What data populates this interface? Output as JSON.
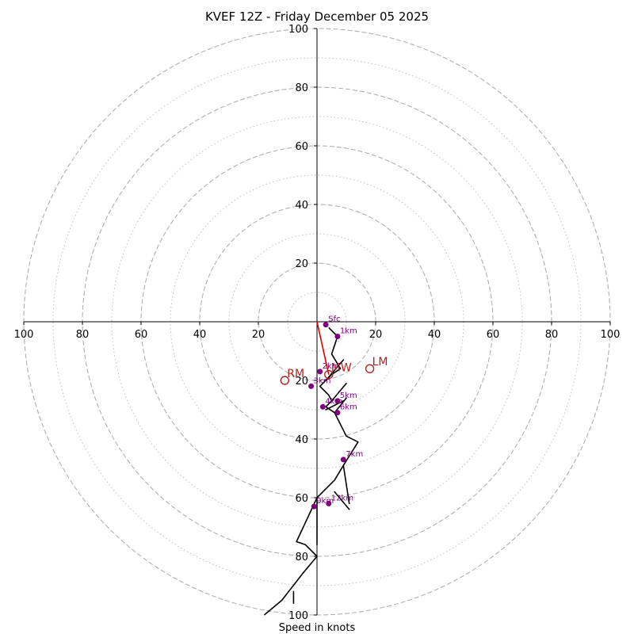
{
  "chart_data": {
    "type": "hodograph",
    "title": "KVEF 12Z - Friday December 05 2025",
    "xlabel": "Speed in knots",
    "units": "knots",
    "axis_range": [
      -100,
      100
    ],
    "ring_major": [
      20,
      40,
      60,
      80,
      100
    ],
    "ring_minor": [
      10,
      30,
      50,
      70,
      90
    ],
    "tick_labels_x": [
      "100",
      "80",
      "60",
      "40",
      "20",
      "20",
      "40",
      "60",
      "80",
      "100"
    ],
    "tick_values_x": [
      -100,
      -80,
      -60,
      -40,
      -20,
      20,
      40,
      60,
      80,
      100
    ],
    "tick_labels_y": [
      "100",
      "80",
      "60",
      "40",
      "20",
      "20",
      "40",
      "60",
      "80",
      "100"
    ],
    "tick_values_y": [
      100,
      80,
      60,
      40,
      20,
      -20,
      -40,
      -60,
      -80,
      -100
    ],
    "colors": {
      "trace": "#000000",
      "points": "#800080",
      "motion": "#b22222",
      "shear_vector": "#dd0000",
      "grid": "#b0b0b0",
      "axes": "#000000"
    },
    "trace": [
      [
        4,
        -2
      ],
      [
        7,
        -5
      ],
      [
        5,
        -11
      ],
      [
        8,
        -16
      ],
      [
        5,
        -18
      ],
      [
        3,
        -20
      ],
      [
        1,
        -22
      ],
      [
        4,
        -25
      ],
      [
        5,
        -27
      ],
      [
        3,
        -29
      ],
      [
        6,
        -31
      ],
      [
        7,
        -33
      ],
      [
        10,
        -39
      ],
      [
        14,
        -41
      ],
      [
        9,
        -49
      ],
      [
        6,
        -54
      ],
      [
        4,
        -56
      ],
      [
        0,
        -60
      ],
      [
        -7,
        -75
      ],
      [
        -4,
        -76
      ],
      [
        0,
        -80
      ],
      [
        -5,
        -86
      ],
      [
        -12,
        -95
      ],
      [
        -18,
        -100
      ]
    ],
    "barbs": [
      [
        [
          3,
          -20
        ],
        [
          9,
          -13
        ]
      ],
      [
        [
          5,
          -27
        ],
        [
          10,
          -21
        ]
      ],
      [
        [
          3,
          -30
        ],
        [
          9,
          -27
        ]
      ],
      [
        [
          6,
          -31
        ],
        [
          10,
          -26
        ]
      ],
      [
        [
          9,
          -49
        ],
        [
          11,
          -62
        ]
      ],
      [
        [
          6,
          -58
        ],
        [
          11,
          -64
        ]
      ],
      [
        [
          0,
          -60
        ],
        [
          0,
          -76
        ]
      ],
      [
        [
          -8,
          -92
        ],
        [
          -8,
          -96
        ]
      ]
    ],
    "height_points": [
      {
        "label": "Sfc",
        "u": 3,
        "v": -1
      },
      {
        "label": "1km",
        "u": 7,
        "v": -5
      },
      {
        "label": "2km",
        "u": 1,
        "v": -17
      },
      {
        "label": "3km",
        "u": -2,
        "v": -22
      },
      {
        "label": "4km",
        "u": 2,
        "v": -29
      },
      {
        "label": "5km",
        "u": 7,
        "v": -27
      },
      {
        "label": "6km",
        "u": 7,
        "v": -31
      },
      {
        "label": "7km",
        "u": 9,
        "v": -47
      },
      {
        "label": "9km",
        "u": -1,
        "v": -63
      },
      {
        "label": "12km",
        "u": 4,
        "v": -62
      }
    ],
    "storm_motion": [
      {
        "label": "MW",
        "u": 4,
        "v": -18
      },
      {
        "label": "LM",
        "u": 18,
        "v": -16
      },
      {
        "label": "RM",
        "u": -11,
        "v": -20
      }
    ],
    "shear_vector": [
      [
        0,
        0
      ],
      [
        4,
        -18
      ]
    ]
  }
}
